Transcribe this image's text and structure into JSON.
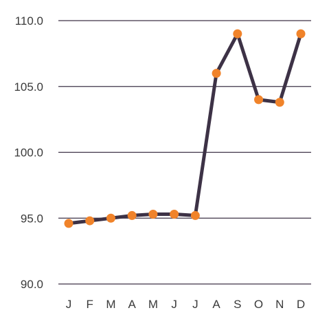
{
  "chart_data": {
    "type": "line",
    "title": "",
    "xlabel": "",
    "ylabel": "",
    "categories": [
      "J",
      "F",
      "M",
      "A",
      "M",
      "J",
      "J",
      "A",
      "S",
      "O",
      "N",
      "D"
    ],
    "series": [
      {
        "values": [
          94.6,
          94.8,
          95.0,
          95.2,
          95.3,
          95.3,
          95.2,
          106.0,
          109.0,
          104.0,
          103.8,
          109.0
        ]
      }
    ],
    "ylim": [
      90,
      110
    ],
    "yticks": [
      "90.0",
      "95.0",
      "100.0",
      "105.0",
      "110.0"
    ],
    "grid": true,
    "legend": "none",
    "colors": {
      "line": "#3d3246",
      "marker": "#f0832a",
      "grid": "#3d3246",
      "text": "#3a3a3a"
    }
  }
}
